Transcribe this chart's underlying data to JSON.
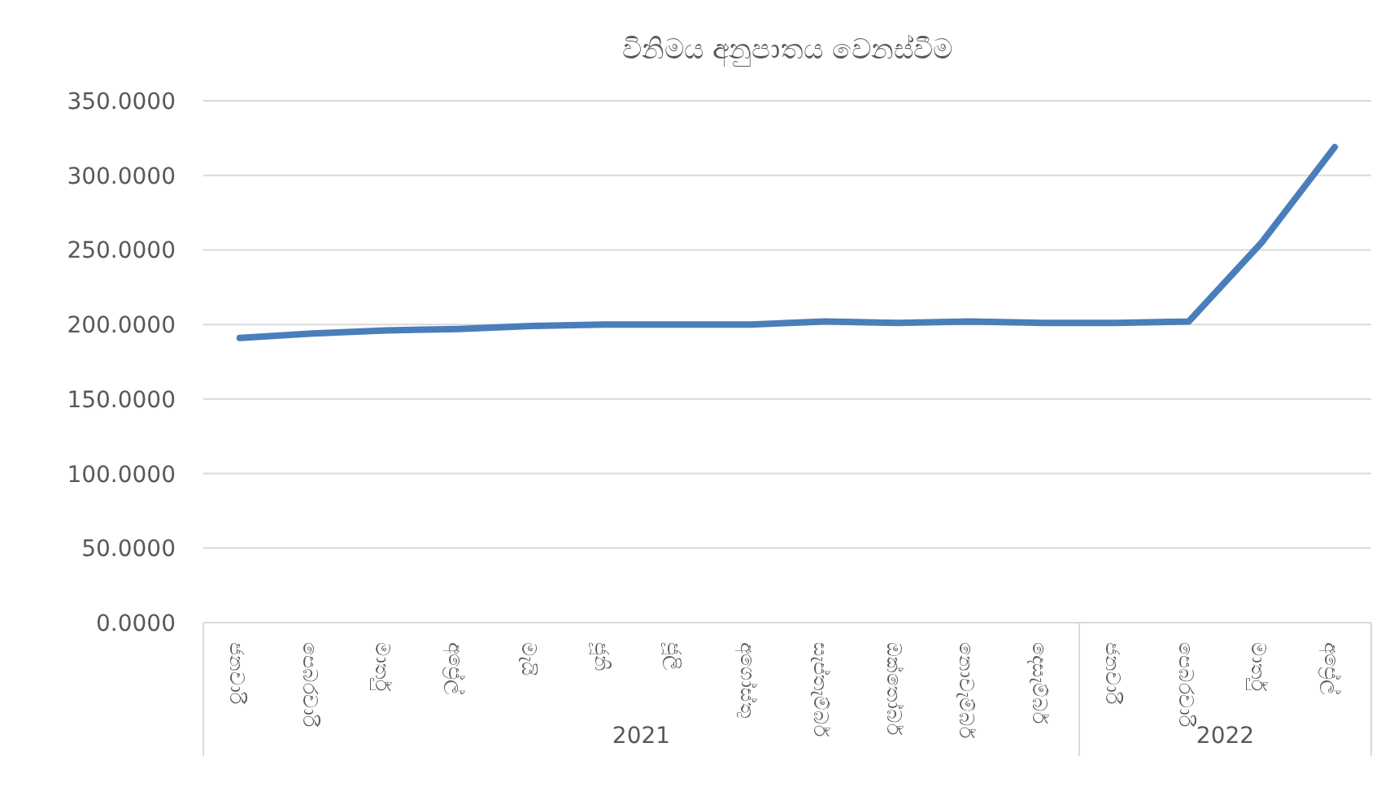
{
  "chart_data": {
    "type": "line",
    "title": "විනිමය අනුපාතය වෙනස්වීම",
    "categories": [
      "ජනවාරි",
      "පෙබරවාරි",
      "මාර්තු",
      "අප්‍රේල්",
      "මැයි",
      "ජූනි",
      "ජූලි",
      "අගෝස්තු",
      "සැප්තැම්බර්",
      "ඔක්තෝබර්",
      "නොවැම්බර්",
      "දෙසැම්බර්",
      "ජනවාරි",
      "පෙබරවාරි",
      "මාර්තු",
      "අප්‍රේල්"
    ],
    "series": [
      {
        "color": "#4a7ebb",
        "values": [
          191,
          194,
          196,
          197,
          199,
          200,
          200,
          200,
          202,
          201,
          202,
          201,
          201,
          202,
          255,
          319
        ]
      }
    ],
    "annotations": [
      "2021",
      "2022"
    ],
    "ylim": [
      0,
      350
    ],
    "yticks": [
      {
        "value": 0,
        "label": "0.0000"
      },
      {
        "value": 50,
        "label": "50.0000"
      },
      {
        "value": 100,
        "label": "100.0000"
      },
      {
        "value": 150,
        "label": "150.0000"
      },
      {
        "value": 200,
        "label": "200.0000"
      },
      {
        "value": 250,
        "label": "250.0000"
      },
      {
        "value": 300,
        "label": "300.0000"
      },
      {
        "value": 350,
        "label": "350.0000"
      }
    ],
    "grid": "y",
    "marker": "none",
    "line_style": "solid"
  }
}
